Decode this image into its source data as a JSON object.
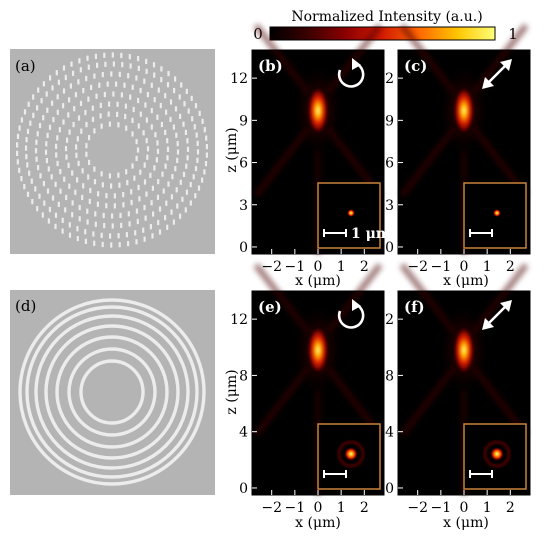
{
  "colorbar": {
    "title": "Normalized Intensity (a.u.)",
    "min_label": "0",
    "max_label": "1",
    "colors": [
      "#000000",
      "#3a0000",
      "#8a0000",
      "#d21b00",
      "#ff6a00",
      "#ffc600",
      "#ffff7a"
    ]
  },
  "panels": [
    {
      "label": "(a)",
      "kind": "sem-nanoholes"
    },
    {
      "label": "(b)",
      "kind": "intensity",
      "icon": "circular-polarization-icon",
      "scalebar_label": "1 μm",
      "inset_spot": "small"
    },
    {
      "label": "(c)",
      "kind": "intensity",
      "icon": "linear-polarization-icon",
      "inset_spot": "small"
    },
    {
      "label": "(d)",
      "kind": "sem-rings"
    },
    {
      "label": "(e)",
      "kind": "intensity",
      "icon": "circular-polarization-icon",
      "inset_spot": "large"
    },
    {
      "label": "(f)",
      "kind": "intensity",
      "icon": "linear-polarization-icon",
      "inset_spot": "large"
    }
  ],
  "axes": {
    "top_row": {
      "ylabel": "z (μm)",
      "yticks": [
        "0",
        "3",
        "6",
        "9",
        "12"
      ],
      "ylim": [
        -0.5,
        14.0
      ],
      "focus_z": 9.7
    },
    "bottom_row": {
      "ylabel": "z (μm)",
      "yticks": [
        "0",
        "4",
        "8",
        "12"
      ],
      "ylim": [
        -0.5,
        14.0
      ],
      "focus_z": 9.8
    },
    "xlabel": "x (μm)",
    "xticks": [
      "−2",
      "−1",
      "0",
      "1",
      "2"
    ],
    "xlim": [
      -2.85,
      2.85
    ]
  },
  "colors": {
    "sem_bg": "#b4b4b4",
    "sem_feature": "#ececec",
    "inset_border": "#c8843c"
  }
}
